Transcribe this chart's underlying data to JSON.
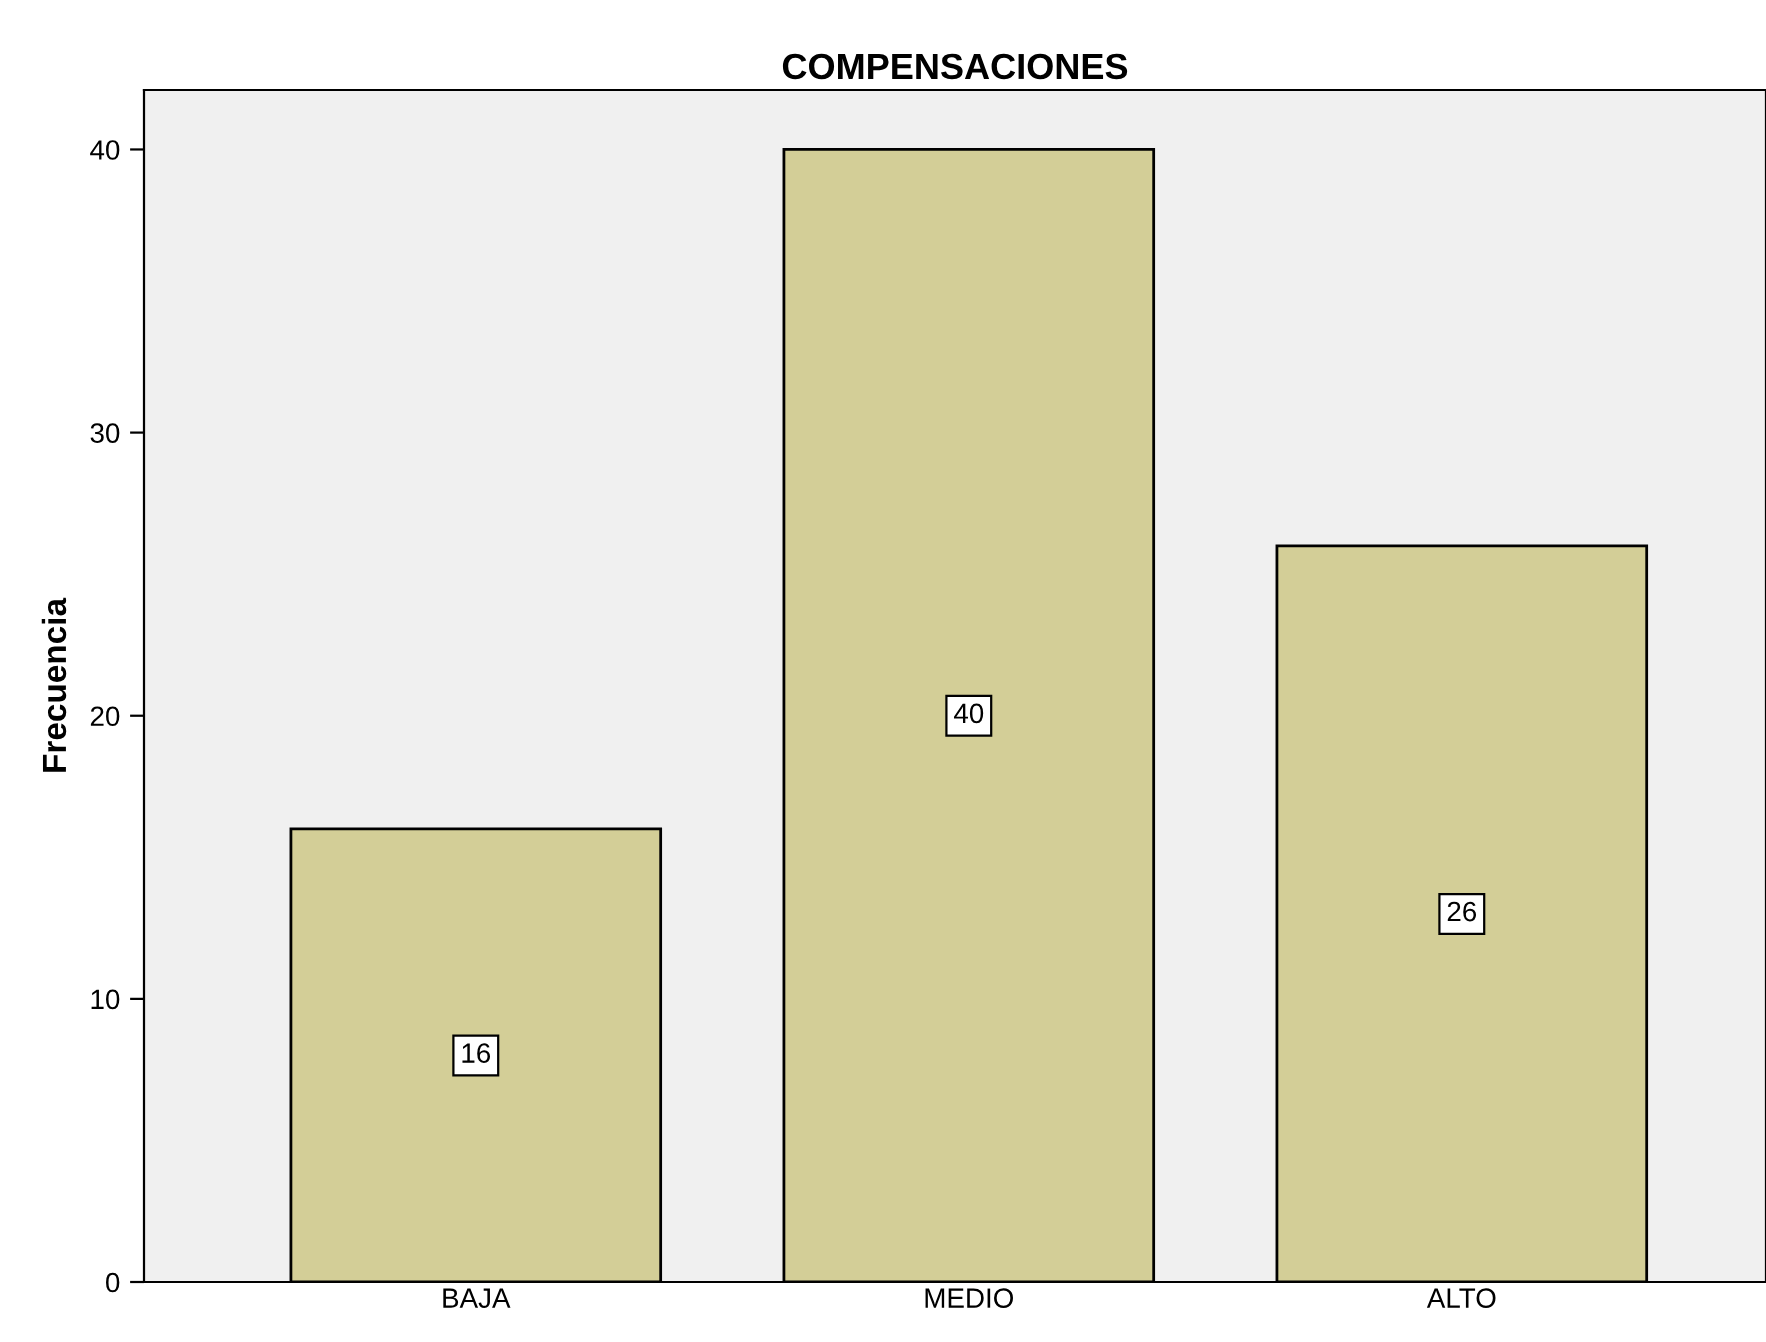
{
  "chart_data": {
    "type": "bar",
    "title": "COMPENSACIONES",
    "ylabel": "Frecuencia",
    "categories": [
      "BAJA",
      "MEDIO",
      "ALTO"
    ],
    "values": [
      16,
      40,
      26
    ],
    "color": "#d3ce97",
    "ylim": [
      0,
      42.1
    ],
    "yticks": [
      0,
      10,
      20,
      30,
      40
    ],
    "grid": false,
    "data_labels": true
  }
}
